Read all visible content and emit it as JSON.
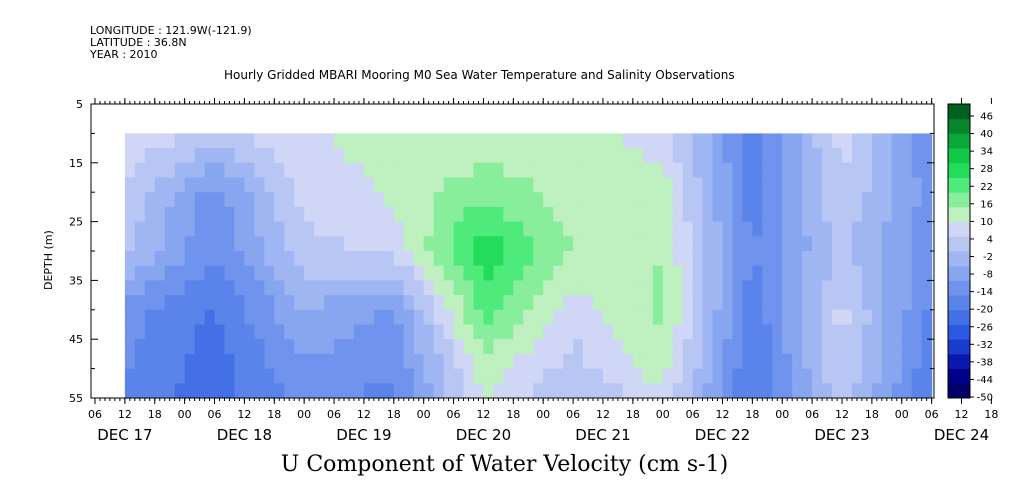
{
  "header": {
    "longitude": "LONGITUDE : 121.9W(-121.9)",
    "latitude": "LATITUDE : 36.8N",
    "year": "YEAR : 2010",
    "title": "Hourly Gridded MBARI Mooring M0 Sea Water Temperature and Salinity Observations"
  },
  "chart_data": {
    "type": "heatmap",
    "title": "Hourly Gridded MBARI Mooring M0 Sea Water Temperature and Salinity Observations",
    "xlabel": "U Component of Water Velocity (cm s-1)",
    "ylabel": "DEPTH (m)",
    "y_ticks": [
      "5",
      "15",
      "25",
      "35",
      "45",
      "55"
    ],
    "ylim": [
      55,
      5
    ],
    "x_hour_ticks": [
      "06",
      "12",
      "18",
      "00",
      "06",
      "12",
      "18",
      "00",
      "06",
      "12",
      "18",
      "00",
      "06",
      "12",
      "18",
      "00",
      "06",
      "12",
      "18",
      "00",
      "06",
      "12",
      "18",
      "00",
      "06",
      "12",
      "18",
      "00",
      "06",
      "12",
      "18",
      "00",
      "06"
    ],
    "x_day_labels": [
      "DEC 17",
      "DEC 18",
      "DEC 19",
      "DEC 20",
      "DEC 21",
      "DEC 22",
      "DEC 23",
      "DEC 24"
    ],
    "data_start": "DEC 17 12:00",
    "data_end": "DEC 24 06:00",
    "data_depth_range": [
      10,
      55
    ],
    "time_hours": [
      0,
      18,
      36,
      54,
      72,
      90,
      108,
      126,
      144,
      162
    ],
    "depths": [
      10,
      20,
      30,
      40,
      50,
      55
    ],
    "values": [
      [
        10,
        6,
        10,
        14,
        12,
        15,
        8,
        -16,
        8,
        -14
      ],
      [
        6,
        -12,
        8,
        12,
        20,
        14,
        14,
        -18,
        6,
        -12
      ],
      [
        2,
        -14,
        4,
        8,
        30,
        16,
        16,
        -14,
        2,
        -12
      ],
      [
        -12,
        -20,
        -4,
        -10,
        24,
        8,
        18,
        -18,
        8,
        -16
      ],
      [
        -14,
        -22,
        -10,
        -14,
        14,
        4,
        14,
        -20,
        6,
        -18
      ],
      [
        -16,
        -22,
        -12,
        -16,
        12,
        0,
        10,
        -20,
        4,
        -20
      ]
    ],
    "colorbar": {
      "labels": [
        "46",
        "40",
        "34",
        "28",
        "22",
        "16",
        "10",
        "4",
        "-2",
        "-8",
        "-14",
        "-20",
        "-26",
        "-32",
        "-38",
        "-44",
        "-50"
      ],
      "range": [
        -50,
        52
      ]
    }
  }
}
